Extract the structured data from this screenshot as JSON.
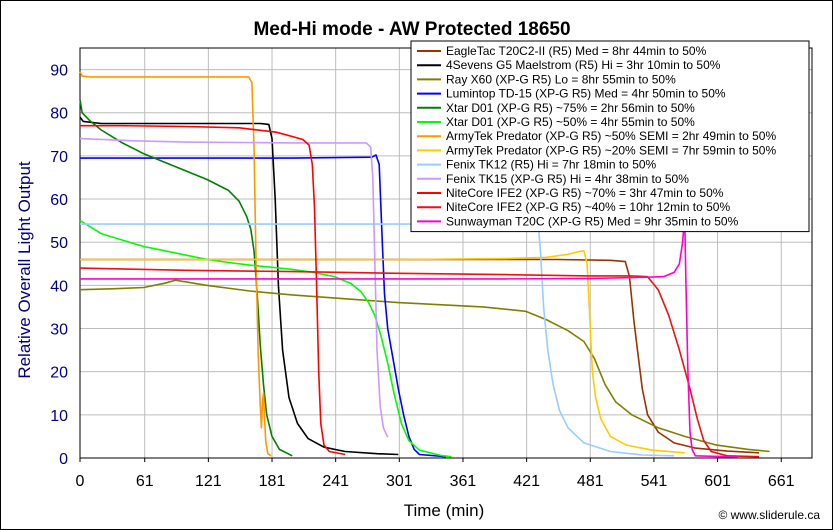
{
  "chart_data": {
    "type": "line",
    "title": "Med-Hi mode - AW Protected 18650",
    "xlabel": "Time (min)",
    "ylabel": "Relative Overall Light Output",
    "xlim": [
      0,
      690
    ],
    "ylim": [
      0,
      95
    ],
    "x_ticks": [
      0,
      61,
      121,
      181,
      241,
      301,
      361,
      421,
      481,
      541,
      601,
      661
    ],
    "y_ticks": [
      0,
      10,
      20,
      30,
      40,
      50,
      60,
      70,
      80,
      90
    ],
    "grid": true,
    "legend_position": "top-right",
    "credit": "© www.sliderule.ca",
    "series": [
      {
        "name": "EagleTac T20C2-II (R5) Med = 8hr 44min to 50%",
        "color": "#993300",
        "points": [
          [
            0,
            46
          ],
          [
            100,
            46
          ],
          [
            300,
            46
          ],
          [
            450,
            46
          ],
          [
            500,
            45.8
          ],
          [
            514,
            45.5
          ],
          [
            518,
            42
          ],
          [
            522,
            32
          ],
          [
            526,
            24
          ],
          [
            530,
            16
          ],
          [
            535,
            10
          ],
          [
            545,
            6
          ],
          [
            560,
            3.5
          ],
          [
            580,
            2.3
          ],
          [
            610,
            1.6
          ],
          [
            640,
            1.2
          ]
        ]
      },
      {
        "name": "4Sevens G5 Maelstrom (R5) Hi = 3hr 10min to 50%",
        "color": "#000000",
        "points": [
          [
            0,
            79
          ],
          [
            3,
            78
          ],
          [
            20,
            77.5
          ],
          [
            100,
            77.5
          ],
          [
            170,
            77.5
          ],
          [
            178,
            77.3
          ],
          [
            181,
            74
          ],
          [
            184,
            60
          ],
          [
            187,
            40
          ],
          [
            191,
            25
          ],
          [
            197,
            14
          ],
          [
            205,
            8
          ],
          [
            215,
            4.5
          ],
          [
            230,
            2.5
          ],
          [
            250,
            1.5
          ],
          [
            280,
            1
          ],
          [
            300,
            0.8
          ]
        ]
      },
      {
        "name": "Ray X60 (XP-G R5) Lo = 8hr 55min to 50%",
        "color": "#808000",
        "points": [
          [
            0,
            39
          ],
          [
            30,
            39.2
          ],
          [
            60,
            39.5
          ],
          [
            80,
            40.5
          ],
          [
            90,
            41.2
          ],
          [
            120,
            40
          ],
          [
            160,
            38.7
          ],
          [
            200,
            37.8
          ],
          [
            300,
            36
          ],
          [
            380,
            35
          ],
          [
            420,
            34
          ],
          [
            440,
            32
          ],
          [
            460,
            29.5
          ],
          [
            475,
            27
          ],
          [
            485,
            23
          ],
          [
            495,
            17
          ],
          [
            505,
            13
          ],
          [
            520,
            10
          ],
          [
            545,
            7
          ],
          [
            570,
            5
          ],
          [
            600,
            3
          ],
          [
            630,
            2
          ],
          [
            650,
            1.5
          ]
        ]
      },
      {
        "name": "Lumintop TD-15 (XP-G R5) Med = 4hr 50min to 50%",
        "color": "#0000ff",
        "points": [
          [
            0,
            69.5
          ],
          [
            100,
            69.5
          ],
          [
            200,
            69.5
          ],
          [
            275,
            69.7
          ],
          [
            279,
            70.2
          ],
          [
            282,
            68
          ],
          [
            285,
            50
          ],
          [
            287,
            38
          ],
          [
            290,
            30
          ],
          [
            295,
            23
          ],
          [
            300,
            16
          ],
          [
            305,
            10
          ],
          [
            310,
            5
          ],
          [
            315,
            2
          ],
          [
            320,
            0.8
          ],
          [
            345,
            0.3
          ]
        ]
      },
      {
        "name": "Xtar D01 (XP-G R5) ~75% = 2hr 56min to 50%",
        "color": "#008000",
        "points": [
          [
            0,
            83
          ],
          [
            2,
            80
          ],
          [
            10,
            78
          ],
          [
            20,
            76
          ],
          [
            40,
            73
          ],
          [
            60,
            70.5
          ],
          [
            80,
            68.5
          ],
          [
            100,
            66.5
          ],
          [
            120,
            64.5
          ],
          [
            140,
            62
          ],
          [
            150,
            59.5
          ],
          [
            157,
            56
          ],
          [
            161,
            53
          ],
          [
            164,
            48
          ],
          [
            167,
            38
          ],
          [
            170,
            26
          ],
          [
            173,
            17
          ],
          [
            176,
            10
          ],
          [
            181,
            5
          ],
          [
            188,
            2
          ],
          [
            200,
            0.5
          ]
        ]
      },
      {
        "name": "Xtar D01 (XP-G R5) ~50% = 4hr 55min to 50%",
        "color": "#00ff00",
        "points": [
          [
            0,
            55
          ],
          [
            20,
            52
          ],
          [
            40,
            50.5
          ],
          [
            60,
            49
          ],
          [
            80,
            48
          ],
          [
            100,
            47
          ],
          [
            120,
            46
          ],
          [
            140,
            45.3
          ],
          [
            160,
            44.7
          ],
          [
            180,
            44.2
          ],
          [
            200,
            43.7
          ],
          [
            220,
            43
          ],
          [
            240,
            42
          ],
          [
            255,
            40.5
          ],
          [
            265,
            38.5
          ],
          [
            272,
            36
          ],
          [
            278,
            33
          ],
          [
            284,
            28
          ],
          [
            290,
            22
          ],
          [
            296,
            15
          ],
          [
            303,
            8
          ],
          [
            310,
            4
          ],
          [
            320,
            1.8
          ],
          [
            340,
            0.6
          ],
          [
            350,
            0.3
          ]
        ]
      },
      {
        "name": "ArmyTek Predator (XP-G R5) ~50% SEMI = 2hr 49min to 50%",
        "color": "#ff9900",
        "points": [
          [
            0,
            89.5
          ],
          [
            2,
            88.5
          ],
          [
            10,
            88.3
          ],
          [
            60,
            88.3
          ],
          [
            120,
            88.3
          ],
          [
            150,
            88.3
          ],
          [
            159,
            88.3
          ],
          [
            162,
            87
          ],
          [
            164,
            72
          ],
          [
            166,
            45
          ],
          [
            168,
            24
          ],
          [
            170,
            12
          ],
          [
            171,
            7
          ],
          [
            172,
            13
          ],
          [
            173,
            15
          ],
          [
            174,
            9
          ],
          [
            175,
            4
          ],
          [
            177,
            1
          ],
          [
            180,
            0.5
          ]
        ]
      },
      {
        "name": "ArmyTek Predator (XP-G R5) ~20% SEMI = 7hr 59min to 50%",
        "color": "#ffcc00",
        "points": [
          [
            0,
            46
          ],
          [
            100,
            46
          ],
          [
            200,
            46
          ],
          [
            300,
            46
          ],
          [
            400,
            46.2
          ],
          [
            440,
            46.5
          ],
          [
            460,
            47.2
          ],
          [
            470,
            47.8
          ],
          [
            475,
            48
          ],
          [
            478,
            45
          ],
          [
            481,
            30
          ],
          [
            483,
            20
          ],
          [
            486,
            14
          ],
          [
            491,
            9
          ],
          [
            500,
            5
          ],
          [
            515,
            3
          ],
          [
            540,
            1.8
          ],
          [
            570,
            1.2
          ]
        ]
      },
      {
        "name": "Fenix TK12 (R5) Hi = 7hr 18min to 50%",
        "color": "#99ccff",
        "points": [
          [
            0,
            54.2
          ],
          [
            100,
            54.2
          ],
          [
            200,
            54.2
          ],
          [
            300,
            54.2
          ],
          [
            400,
            54.2
          ],
          [
            432,
            54.2
          ],
          [
            434,
            48
          ],
          [
            437,
            35
          ],
          [
            441,
            25
          ],
          [
            446,
            17
          ],
          [
            452,
            11
          ],
          [
            460,
            7
          ],
          [
            475,
            3.5
          ],
          [
            500,
            1.5
          ],
          [
            530,
            0.7
          ],
          [
            560,
            0.5
          ]
        ]
      },
      {
        "name": "Fenix TK15 (XP-G R5) Hi = 4hr 38min to 50%",
        "color": "#cc99ff",
        "points": [
          [
            0,
            74
          ],
          [
            50,
            73.5
          ],
          [
            100,
            73.2
          ],
          [
            200,
            73
          ],
          [
            270,
            73
          ],
          [
            274,
            72
          ],
          [
            276,
            65
          ],
          [
            278,
            45
          ],
          [
            280,
            25
          ],
          [
            283,
            12
          ],
          [
            286,
            7
          ],
          [
            290,
            4.8
          ]
        ]
      },
      {
        "name": "NiteCore IFE2 (XP-G R5) ~70% = 3hr 47min to 50%",
        "color": "#ff0000",
        "points": [
          [
            0,
            77
          ],
          [
            40,
            77
          ],
          [
            100,
            76.8
          ],
          [
            150,
            76.5
          ],
          [
            185,
            75.5
          ],
          [
            200,
            74.5
          ],
          [
            210,
            73.8
          ],
          [
            216,
            72.5
          ],
          [
            219,
            68
          ],
          [
            221,
            58
          ],
          [
            223,
            40
          ],
          [
            225,
            20
          ],
          [
            227,
            8
          ],
          [
            230,
            3
          ],
          [
            235,
            1.5
          ],
          [
            250,
            0.8
          ]
        ]
      },
      {
        "name": "NiteCore IFE2 (XP-G R5) ~40% = 10hr 12min to 50%",
        "color": "#ee1111",
        "points": [
          [
            0,
            44
          ],
          [
            100,
            43.5
          ],
          [
            200,
            43.2
          ],
          [
            300,
            42.8
          ],
          [
            400,
            42.5
          ],
          [
            480,
            42.2
          ],
          [
            520,
            42.2
          ],
          [
            535,
            42
          ],
          [
            545,
            39
          ],
          [
            555,
            33
          ],
          [
            565,
            25
          ],
          [
            575,
            16
          ],
          [
            582,
            9
          ],
          [
            588,
            4
          ],
          [
            595,
            1.5
          ],
          [
            610,
            0.5
          ],
          [
            640,
            0.3
          ]
        ]
      },
      {
        "name": "Sunwayman T20C (XP-G R5) Med = 9hr 35min to 50%",
        "color": "#ff00cc",
        "points": [
          [
            0,
            41.5
          ],
          [
            100,
            41.5
          ],
          [
            200,
            41.5
          ],
          [
            300,
            41.5
          ],
          [
            400,
            41.5
          ],
          [
            480,
            41.6
          ],
          [
            520,
            41.8
          ],
          [
            550,
            42
          ],
          [
            560,
            43
          ],
          [
            565,
            45
          ],
          [
            568,
            50
          ],
          [
            570,
            56
          ],
          [
            571,
            42
          ],
          [
            573,
            20
          ],
          [
            575,
            6
          ],
          [
            577,
            2
          ],
          [
            580,
            0.5
          ],
          [
            620,
            0.2
          ]
        ]
      }
    ]
  }
}
